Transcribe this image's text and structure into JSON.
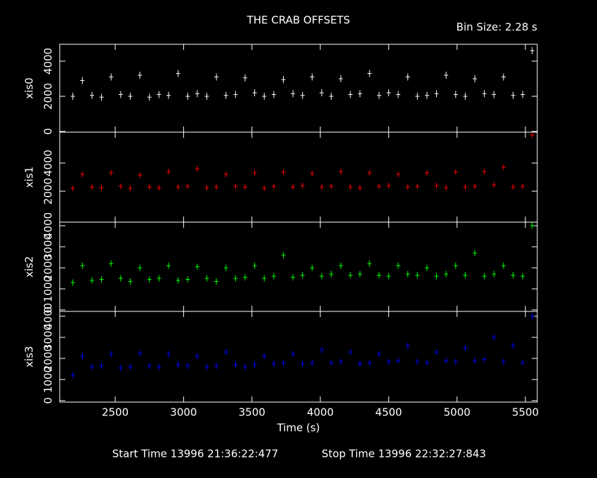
{
  "chart_data": [
    {
      "type": "scatter",
      "title": "THE CRAB OFFSETS",
      "subtitle": "Bin Size: 2.28 s",
      "ylabel": "xis0",
      "color": "#ffffff",
      "error": 200,
      "x": [
        2190,
        2260,
        2330,
        2400,
        2470,
        2540,
        2610,
        2680,
        2750,
        2820,
        2890,
        2960,
        3030,
        3100,
        3170,
        3240,
        3310,
        3380,
        3450,
        3520,
        3590,
        3660,
        3730,
        3800,
        3870,
        3940,
        4010,
        4080,
        4150,
        4220,
        4290,
        4360,
        4430,
        4500,
        4570,
        4640,
        4710,
        4780,
        4850,
        4920,
        4990,
        5060,
        5130,
        5200,
        5270,
        5340,
        5410,
        5480,
        5550
      ],
      "values": [
        2000,
        2900,
        2050,
        1950,
        3100,
        2100,
        2000,
        3200,
        1950,
        2100,
        2050,
        3300,
        2000,
        2150,
        2000,
        3100,
        2050,
        2100,
        3050,
        2200,
        2000,
        2100,
        2950,
        2150,
        2050,
        3100,
        2200,
        2000,
        3000,
        2100,
        2150,
        3300,
        2050,
        2200,
        2100,
        3100,
        2000,
        2050,
        2150,
        3200,
        2100,
        2000,
        3000,
        2150,
        2100,
        3100,
        2050,
        2100,
        4600
      ],
      "xlim": [
        2094,
        5587
      ],
      "xticks": [
        2500,
        3000,
        3500,
        4000,
        4500,
        5000,
        5500
      ],
      "ylim": [
        -40,
        4960
      ],
      "yticks": [
        0,
        2000,
        4000
      ]
    },
    {
      "type": "scatter",
      "ylabel": "xis1",
      "color": "#ff0000",
      "error": 200,
      "x": [
        2190,
        2260,
        2330,
        2400,
        2470,
        2540,
        2610,
        2680,
        2750,
        2820,
        2890,
        2960,
        3030,
        3100,
        3170,
        3240,
        3310,
        3380,
        3450,
        3520,
        3590,
        3660,
        3730,
        3800,
        3870,
        3940,
        4010,
        4080,
        4150,
        4220,
        4290,
        4360,
        4430,
        4500,
        4570,
        4640,
        4710,
        4780,
        4850,
        4920,
        4990,
        5060,
        5130,
        5200,
        5270,
        5340,
        5410,
        5480,
        5550
      ],
      "values": [
        2200,
        3200,
        2300,
        2250,
        3300,
        2350,
        2200,
        3150,
        2300,
        2250,
        3400,
        2300,
        2350,
        3600,
        2250,
        2300,
        3200,
        2350,
        2300,
        3300,
        2200,
        2350,
        3350,
        2300,
        2400,
        3250,
        2300,
        2350,
        3400,
        2300,
        2250,
        3300,
        2350,
        2400,
        3200,
        2300,
        2350,
        3300,
        2400,
        2250,
        3350,
        2300,
        2350,
        3400,
        2450,
        3700,
        2300,
        2350,
        6000
      ],
      "xlim": [
        2094,
        5587
      ],
      "xticks": [
        2500,
        3000,
        3500,
        4000,
        4500,
        5000,
        5500
      ],
      "ylim": [
        -200,
        6200
      ],
      "yticks": [
        2000,
        4000
      ]
    },
    {
      "type": "scatter",
      "ylabel": "xis2",
      "color": "#00ff00",
      "error": 150,
      "x": [
        2190,
        2260,
        2330,
        2400,
        2470,
        2540,
        2610,
        2680,
        2750,
        2820,
        2890,
        2960,
        3030,
        3100,
        3170,
        3240,
        3310,
        3380,
        3450,
        3520,
        3590,
        3660,
        3730,
        3800,
        3870,
        3940,
        4010,
        4080,
        4150,
        4220,
        4290,
        4360,
        4430,
        4500,
        4570,
        4640,
        4710,
        4780,
        4850,
        4920,
        4990,
        5060,
        5130,
        5200,
        5270,
        5340,
        5410,
        5480,
        5550
      ],
      "values": [
        1300,
        2100,
        1400,
        1450,
        2200,
        1500,
        1350,
        2000,
        1450,
        1500,
        2100,
        1400,
        1450,
        2050,
        1500,
        1350,
        2000,
        1500,
        1550,
        2100,
        1500,
        1600,
        2600,
        1550,
        1650,
        2000,
        1600,
        1700,
        2100,
        1650,
        1700,
        2200,
        1650,
        1600,
        2100,
        1700,
        1650,
        2000,
        1600,
        1700,
        2100,
        1650,
        2700,
        1600,
        1700,
        2100,
        1650,
        1600,
        4000
      ],
      "xlim": [
        2094,
        5587
      ],
      "xticks": [
        2500,
        3000,
        3500,
        4000,
        4500,
        5000,
        5500
      ],
      "ylim": [
        -70,
        4170
      ],
      "yticks": [
        0,
        1000,
        2000,
        3000,
        4000
      ]
    },
    {
      "type": "scatter",
      "ylabel": "xis3",
      "xlabel": "Time (s)",
      "color": "#0000ff",
      "error": 150,
      "x": [
        2190,
        2260,
        2330,
        2400,
        2470,
        2540,
        2610,
        2680,
        2750,
        2820,
        2890,
        2960,
        3030,
        3100,
        3170,
        3240,
        3310,
        3380,
        3450,
        3520,
        3590,
        3660,
        3730,
        3800,
        3870,
        3940,
        4010,
        4080,
        4150,
        4220,
        4290,
        4360,
        4430,
        4500,
        4570,
        4640,
        4710,
        4780,
        4850,
        4920,
        4990,
        5060,
        5130,
        5200,
        5270,
        5340,
        5410,
        5480,
        5550
      ],
      "values": [
        1200,
        2100,
        1600,
        1650,
        2200,
        1550,
        1600,
        2250,
        1650,
        1600,
        2200,
        1700,
        1650,
        2100,
        1600,
        1650,
        2300,
        1700,
        1600,
        1700,
        2100,
        1750,
        1800,
        2200,
        1750,
        1800,
        2400,
        1800,
        1850,
        2300,
        1750,
        1800,
        2200,
        1850,
        1900,
        2600,
        1850,
        1800,
        2300,
        1900,
        1850,
        2500,
        1900,
        1950,
        3000,
        1850,
        2600,
        1800,
        4000
      ],
      "xlim": [
        2094,
        5587
      ],
      "xticks": [
        2500,
        3000,
        3500,
        4000,
        4500,
        5000,
        5500
      ],
      "ylim": [
        -70,
        4230
      ],
      "yticks": [
        0,
        1000,
        2000,
        3000,
        4000
      ]
    }
  ],
  "footer": {
    "start": "Start Time 13996 21:36:22:477",
    "stop": "Stop Time 13996 22:32:27:843"
  }
}
